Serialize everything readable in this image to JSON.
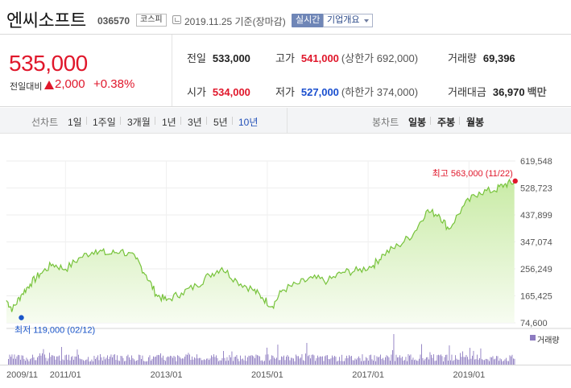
{
  "header": {
    "name": "엔씨소프트",
    "code": "036570",
    "market": "코스피",
    "date_text": "2019.11.25 기준(장마감)",
    "realtime": "실시간",
    "overview": "기업개요"
  },
  "price": {
    "current": "535,000",
    "change_label": "전일대비",
    "change_amount": "2,000",
    "change_percent": "+0.38%"
  },
  "stats": {
    "prev_close": {
      "label": "전일",
      "value": "533,000"
    },
    "high": {
      "label": "고가",
      "value": "541,000",
      "limit": "(상한가 692,000)"
    },
    "volume": {
      "label": "거래량",
      "value": "69,396"
    },
    "open": {
      "label": "시가",
      "value": "534,000"
    },
    "low": {
      "label": "저가",
      "value": "527,000",
      "limit": "(하한가 374,000)"
    },
    "amount": {
      "label": "거래대금",
      "value": "36,970",
      "unit": "백만"
    }
  },
  "period_bar": {
    "line_label": "선차트",
    "periods": [
      "1일",
      "1주일",
      "3개월",
      "1년",
      "3년",
      "5년",
      "10년"
    ],
    "active": "10년",
    "candle_label": "봉차트",
    "candles": [
      "일봉",
      "주봉",
      "월봉"
    ]
  },
  "chart_data": {
    "type": "area",
    "y_ticks": [
      "619,548",
      "528,723",
      "437,899",
      "347,074",
      "256,249",
      "165,425",
      "74,600"
    ],
    "ylim": [
      74600,
      619548
    ],
    "x_ticks": [
      "2009/11",
      "2011/01",
      "2013/01",
      "2015/01",
      "2017/01",
      "2019/01"
    ],
    "x_tick_dates": [
      2009.83,
      2011.0,
      2013.0,
      2015.0,
      2017.0,
      2019.0
    ],
    "x": [
      2009.83,
      2009.95,
      2010.12,
      2010.3,
      2010.5,
      2010.75,
      2011.0,
      2011.3,
      2011.6,
      2011.85,
      2012.1,
      2012.4,
      2012.6,
      2012.8,
      2013.0,
      2013.3,
      2013.6,
      2013.85,
      2014.1,
      2014.4,
      2014.7,
      2014.9,
      2015.1,
      2015.3,
      2015.6,
      2015.9,
      2016.2,
      2016.5,
      2016.8,
      2017.1,
      2017.3,
      2017.6,
      2017.9,
      2018.15,
      2018.4,
      2018.6,
      2018.9,
      2019.2,
      2019.5,
      2019.7,
      2019.9
    ],
    "y": [
      150000,
      119000,
      168000,
      205000,
      240000,
      272000,
      255000,
      295000,
      320000,
      305000,
      318000,
      290000,
      235000,
      170000,
      150000,
      175000,
      200000,
      235000,
      260000,
      215000,
      188000,
      160000,
      130000,
      185000,
      205000,
      225000,
      215000,
      245000,
      250000,
      268000,
      305000,
      335000,
      375000,
      450000,
      440000,
      390000,
      470000,
      515000,
      520000,
      540000,
      548000
    ],
    "max_label": "최고 563,000 (11/22)",
    "max_point": {
      "x": 2019.9,
      "y": 563000
    },
    "min_label": "최저 119,000 (02/12)",
    "min_point": {
      "x": 2009.95,
      "y": 119000
    },
    "volume_label": "거래량",
    "line_color": "#77c33b",
    "fill_color": "#dff3c8",
    "volume_color": "#8d7bc0",
    "max_color": "#e0172b",
    "min_color": "#1a55c9"
  }
}
